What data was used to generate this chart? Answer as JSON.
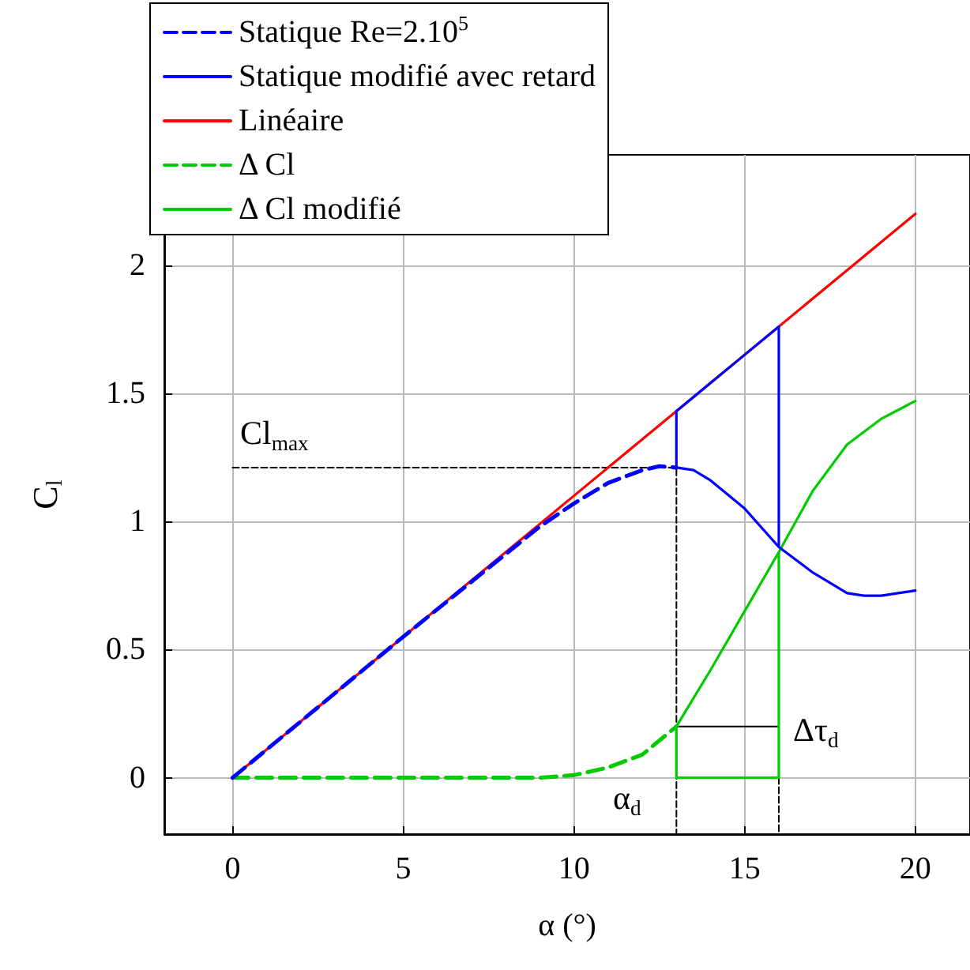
{
  "chart_data": {
    "type": "line",
    "xlabel": "α (°)",
    "ylabel": "C$_{l}$",
    "xlim": [
      -2,
      21.6
    ],
    "ylim": [
      -0.22,
      2.43
    ],
    "xticks": [
      0,
      5,
      10,
      15,
      20
    ],
    "yticks": [
      0,
      0.5,
      1,
      1.5,
      2
    ],
    "grid": true,
    "legend": "top left",
    "marker": "none",
    "series": [
      {
        "name": "Statique Re=2.10$^{5}$",
        "color": "#0000ff",
        "line_style": "dashed",
        "x": [
          0,
          5,
          9,
          10,
          11,
          12,
          12.5,
          13
        ],
        "values": [
          0,
          0.55,
          0.98,
          1.07,
          1.15,
          1.2,
          1.215,
          1.21
        ]
      },
      {
        "name": "Statique modifié avec retard",
        "color": "#0000ff",
        "line_style": "solid",
        "x": [
          20,
          19,
          18.5,
          18,
          17.5,
          17,
          16,
          15,
          14,
          13.5,
          13,
          13,
          14,
          15,
          16,
          16
        ],
        "values": [
          0.73,
          0.71,
          0.71,
          0.72,
          0.76,
          0.8,
          0.9,
          1.05,
          1.16,
          1.2,
          1.21,
          1.43,
          1.54,
          1.65,
          1.76,
          0.9
        ]
      },
      {
        "name": "Linéaire",
        "color": "#ff0000",
        "line_style": "solid",
        "x": [
          0,
          20
        ],
        "values": [
          0,
          2.2
        ]
      },
      {
        "name": "Δ Cl",
        "color": "#00cc00",
        "line_style": "dashed",
        "x": [
          0,
          9,
          10,
          11,
          12,
          13
        ],
        "values": [
          0,
          0,
          0.01,
          0.04,
          0.09,
          0.2
        ]
      },
      {
        "name": "Δ Cl modifié",
        "color": "#00cc00",
        "line_style": "solid",
        "x": [
          20,
          19,
          18,
          17,
          16,
          15,
          14,
          13,
          13,
          16,
          16
        ],
        "values": [
          1.47,
          1.4,
          1.3,
          1.12,
          0.88,
          0.65,
          0.42,
          0.2,
          0,
          0,
          0.88
        ]
      },
      {
        "color": "#000000",
        "line_style": "dashed",
        "x": [
          0,
          13,
          13
        ],
        "values": [
          1.21,
          1.21,
          -0.22
        ]
      },
      {
        "color": "#000000",
        "line_style": "dashed",
        "x": [
          16,
          16
        ],
        "values": [
          0,
          -0.22
        ]
      },
      {
        "color": "#000000",
        "line_style": "solid",
        "x": [
          13,
          16
        ],
        "values": [
          0.2,
          0.2
        ]
      }
    ],
    "annotations": [
      "Cl$_{max}$",
      "α$_{d}$",
      "Δτ$_{d}$"
    ]
  }
}
